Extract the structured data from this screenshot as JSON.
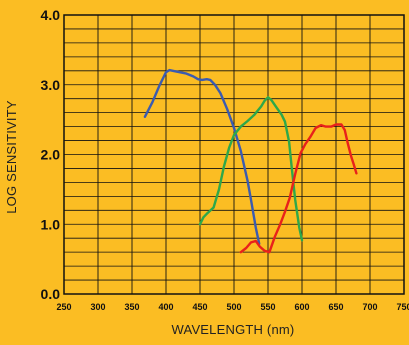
{
  "chart_data": {
    "type": "line",
    "title": "",
    "xlabel": "WAVELENGTH (nm)",
    "ylabel": "LOG SENSITIVITY",
    "xlim": [
      250,
      750
    ],
    "ylim": [
      0,
      4
    ],
    "x_ticks": [
      "250",
      "300",
      "350",
      "400",
      "450",
      "500",
      "550",
      "600",
      "650",
      "700",
      "750"
    ],
    "y_ticks": [
      "0.0",
      "1.0",
      "2.0",
      "3.0",
      "4.0"
    ],
    "grid": true,
    "series": [
      {
        "color": "#3b5bb0",
        "points": [
          [
            369,
            2.54
          ],
          [
            380,
            2.75
          ],
          [
            390,
            2.98
          ],
          [
            400,
            3.18
          ],
          [
            405,
            3.21
          ],
          [
            410,
            3.2
          ],
          [
            420,
            3.18
          ],
          [
            430,
            3.16
          ],
          [
            440,
            3.12
          ],
          [
            447,
            3.08
          ],
          [
            453,
            3.07
          ],
          [
            460,
            3.08
          ],
          [
            465,
            3.07
          ],
          [
            472,
            3.0
          ],
          [
            480,
            2.88
          ],
          [
            490,
            2.65
          ],
          [
            500,
            2.38
          ],
          [
            510,
            2.05
          ],
          [
            520,
            1.62
          ],
          [
            525,
            1.35
          ],
          [
            532,
            0.95
          ],
          [
            537,
            0.72
          ]
        ]
      },
      {
        "color": "#2ea84a",
        "points": [
          [
            450,
            1.0
          ],
          [
            455,
            1.1
          ],
          [
            460,
            1.15
          ],
          [
            470,
            1.24
          ],
          [
            478,
            1.5
          ],
          [
            485,
            1.82
          ],
          [
            493,
            2.1
          ],
          [
            500,
            2.28
          ],
          [
            510,
            2.4
          ],
          [
            520,
            2.48
          ],
          [
            530,
            2.57
          ],
          [
            540,
            2.69
          ],
          [
            545,
            2.77
          ],
          [
            550,
            2.82
          ],
          [
            555,
            2.78
          ],
          [
            562,
            2.68
          ],
          [
            570,
            2.57
          ],
          [
            575,
            2.47
          ],
          [
            581,
            2.18
          ],
          [
            585,
            1.8
          ],
          [
            590,
            1.35
          ],
          [
            596,
            0.95
          ],
          [
            600,
            0.77
          ]
        ]
      },
      {
        "color": "#e8211b",
        "points": [
          [
            510,
            0.6
          ],
          [
            518,
            0.66
          ],
          [
            525,
            0.74
          ],
          [
            532,
            0.76
          ],
          [
            538,
            0.68
          ],
          [
            545,
            0.62
          ],
          [
            552,
            0.6
          ],
          [
            560,
            0.82
          ],
          [
            568,
            1.0
          ],
          [
            575,
            1.18
          ],
          [
            582,
            1.38
          ],
          [
            590,
            1.72
          ],
          [
            598,
            2.02
          ],
          [
            605,
            2.15
          ],
          [
            612,
            2.25
          ],
          [
            620,
            2.38
          ],
          [
            628,
            2.42
          ],
          [
            635,
            2.4
          ],
          [
            643,
            2.4
          ],
          [
            650,
            2.43
          ],
          [
            658,
            2.43
          ],
          [
            663,
            2.35
          ],
          [
            667,
            2.17
          ],
          [
            672,
            1.98
          ],
          [
            676,
            1.86
          ],
          [
            680,
            1.73
          ]
        ]
      }
    ]
  }
}
